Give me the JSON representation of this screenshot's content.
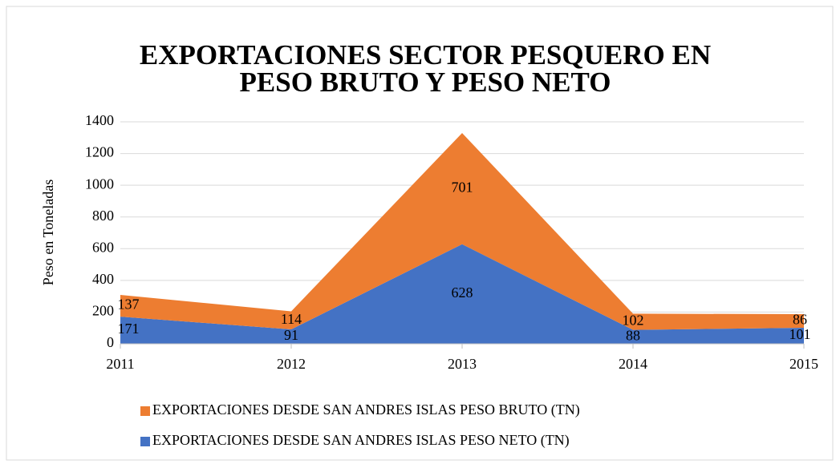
{
  "chart_data": {
    "type": "stacked_area",
    "title": "EXPORTACIONES SECTOR PESQUERO EN PESO BRUTO Y PESO NETO",
    "y_label": "Peso en Toneladas",
    "categories": [
      "2011",
      "2012",
      "2013",
      "2014",
      "2015"
    ],
    "series": [
      {
        "name": "EXPORTACIONES DESDE SAN ANDRES ISLAS PESO BRUTO (TN)",
        "color": "#ed7d31",
        "values": [
          137,
          114,
          701,
          102,
          86
        ]
      },
      {
        "name": "EXPORTACIONES DESDE SAN ANDRES ISLAS PESO NETO (TN)",
        "color": "#4472c4",
        "values": [
          171,
          91,
          628,
          88,
          101
        ]
      }
    ],
    "ylim": [
      0,
      1400
    ],
    "yticks": [
      0,
      200,
      400,
      600,
      800,
      1000,
      1200,
      1400
    ],
    "grid": true,
    "legend": "bottom"
  }
}
